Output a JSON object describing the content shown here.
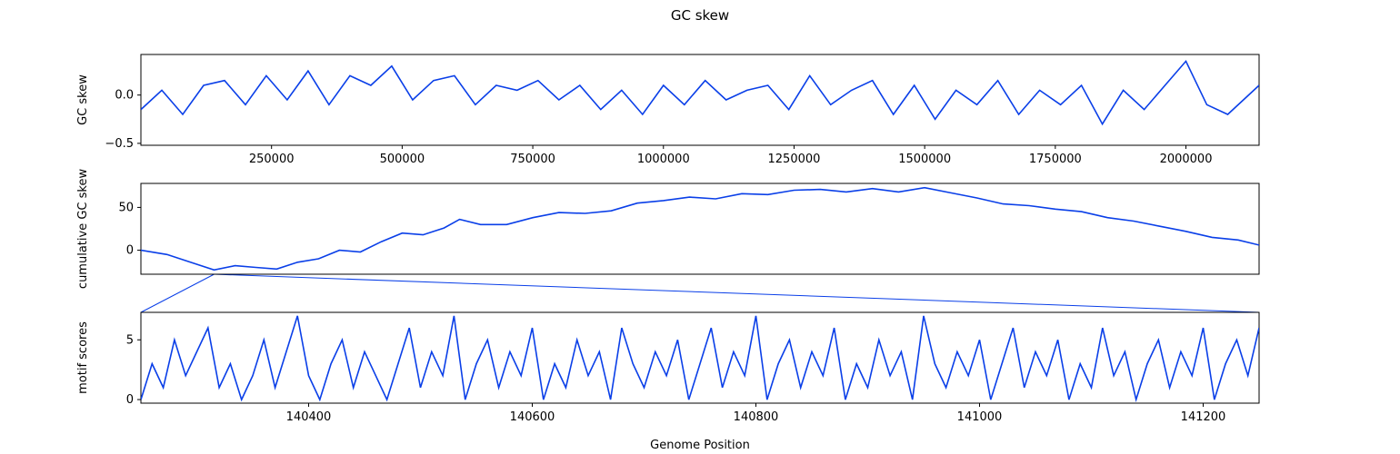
{
  "figure": {
    "title": "GC skew",
    "xlabel": "Genome Position"
  },
  "colors": {
    "line": "#0a3fe8",
    "axis": "#000000"
  },
  "chart_data": [
    {
      "type": "line",
      "ylabel": "GC skew",
      "xlim": [
        0,
        2140000
      ],
      "ylim": [
        -0.52,
        0.42
      ],
      "xticks": [
        250000,
        500000,
        750000,
        1000000,
        1250000,
        1500000,
        1750000,
        2000000
      ],
      "xtick_labels": [
        "250000",
        "500000",
        "750000",
        "1000000",
        "1250000",
        "1500000",
        "1750000",
        "2000000"
      ],
      "yticks": [
        -0.5,
        0.0
      ],
      "ytick_labels": [
        "−0.5",
        "0.0"
      ],
      "series": [
        {
          "x": [
            0,
            40000,
            80000,
            120000,
            160000,
            200000,
            240000,
            280000,
            320000,
            360000,
            400000,
            440000,
            480000,
            520000,
            560000,
            600000,
            640000,
            680000,
            720000,
            760000,
            800000,
            840000,
            880000,
            920000,
            960000,
            1000000,
            1040000,
            1080000,
            1120000,
            1160000,
            1200000,
            1240000,
            1280000,
            1320000,
            1360000,
            1400000,
            1440000,
            1480000,
            1520000,
            1560000,
            1600000,
            1640000,
            1680000,
            1720000,
            1760000,
            1800000,
            1840000,
            1880000,
            1920000,
            1960000,
            2000000,
            2040000,
            2080000,
            2140000
          ],
          "y": [
            -0.15,
            0.05,
            -0.2,
            0.1,
            0.15,
            -0.1,
            0.2,
            -0.05,
            0.25,
            -0.1,
            0.2,
            0.1,
            0.3,
            -0.05,
            0.15,
            0.2,
            -0.1,
            0.1,
            0.05,
            0.15,
            -0.05,
            0.1,
            -0.15,
            0.05,
            -0.2,
            0.1,
            -0.1,
            0.15,
            -0.05,
            0.05,
            0.1,
            -0.15,
            0.2,
            -0.1,
            0.05,
            0.15,
            -0.2,
            0.1,
            -0.25,
            0.05,
            -0.1,
            0.15,
            -0.2,
            0.05,
            -0.1,
            0.1,
            -0.3,
            0.05,
            -0.15,
            0.1,
            0.35,
            -0.1,
            -0.2,
            0.1
          ]
        }
      ]
    },
    {
      "type": "line",
      "ylabel": "cumulative GC skew",
      "xlim": [
        0,
        2140000
      ],
      "ylim": [
        -28,
        78
      ],
      "yticks": [
        0,
        50
      ],
      "ytick_labels": [
        "0",
        "50"
      ],
      "series": [
        {
          "x": [
            0,
            50000,
            100000,
            140000,
            180000,
            220000,
            260000,
            300000,
            340000,
            380000,
            420000,
            460000,
            500000,
            540000,
            580000,
            610000,
            650000,
            700000,
            750000,
            800000,
            850000,
            900000,
            950000,
            1000000,
            1050000,
            1100000,
            1150000,
            1200000,
            1250000,
            1300000,
            1350000,
            1400000,
            1450000,
            1500000,
            1550000,
            1600000,
            1650000,
            1700000,
            1750000,
            1800000,
            1850000,
            1900000,
            1950000,
            2000000,
            2050000,
            2100000,
            2140000
          ],
          "y": [
            0,
            -5,
            -15,
            -23,
            -18,
            -20,
            -22,
            -14,
            -10,
            0,
            -2,
            10,
            20,
            18,
            26,
            36,
            30,
            30,
            38,
            44,
            43,
            46,
            55,
            58,
            62,
            60,
            66,
            65,
            70,
            71,
            68,
            72,
            68,
            73,
            67,
            61,
            54,
            52,
            48,
            45,
            38,
            34,
            28,
            22,
            15,
            12,
            6
          ]
        }
      ]
    },
    {
      "type": "line",
      "ylabel": "motif scores",
      "xlim": [
        140250,
        141250
      ],
      "ylim": [
        -0.3,
        7.3
      ],
      "xticks": [
        140400,
        140600,
        140800,
        141000,
        141200
      ],
      "xtick_labels": [
        "140400",
        "140600",
        "140800",
        "141000",
        "141200"
      ],
      "yticks": [
        0,
        5
      ],
      "ytick_labels": [
        "0",
        "5"
      ],
      "series": [
        {
          "x": [
            140250,
            140260,
            140270,
            140280,
            140290,
            140300,
            140310,
            140320,
            140330,
            140340,
            140350,
            140360,
            140370,
            140380,
            140390,
            140400,
            140410,
            140420,
            140430,
            140440,
            140450,
            140460,
            140470,
            140480,
            140490,
            140500,
            140510,
            140520,
            140530,
            140540,
            140550,
            140560,
            140570,
            140580,
            140590,
            140600,
            140610,
            140620,
            140630,
            140640,
            140650,
            140660,
            140670,
            140680,
            140690,
            140700,
            140710,
            140720,
            140730,
            140740,
            140750,
            140760,
            140770,
            140780,
            140790,
            140800,
            140810,
            140820,
            140830,
            140840,
            140850,
            140860,
            140870,
            140880,
            140890,
            140900,
            140910,
            140920,
            140930,
            140940,
            140950,
            140960,
            140970,
            140980,
            140990,
            141000,
            141010,
            141020,
            141030,
            141040,
            141050,
            141060,
            141070,
            141080,
            141090,
            141100,
            141110,
            141120,
            141130,
            141140,
            141150,
            141160,
            141170,
            141180,
            141190,
            141200,
            141210,
            141220,
            141230,
            141240,
            141250
          ],
          "y": [
            0,
            3,
            1,
            5,
            2,
            4,
            6,
            1,
            3,
            0,
            2,
            5,
            1,
            4,
            7,
            2,
            0,
            3,
            5,
            1,
            4,
            2,
            0,
            3,
            6,
            1,
            4,
            2,
            7,
            0,
            3,
            5,
            1,
            4,
            2,
            6,
            0,
            3,
            1,
            5,
            2,
            4,
            0,
            6,
            3,
            1,
            4,
            2,
            5,
            0,
            3,
            6,
            1,
            4,
            2,
            7,
            0,
            3,
            5,
            1,
            4,
            2,
            6,
            0,
            3,
            1,
            5,
            2,
            4,
            0,
            7,
            3,
            1,
            4,
            2,
            5,
            0,
            3,
            6,
            1,
            4,
            2,
            5,
            0,
            3,
            1,
            6,
            2,
            4,
            0,
            3,
            5,
            1,
            4,
            2,
            6,
            0,
            3,
            5,
            2,
            6
          ]
        }
      ]
    }
  ]
}
